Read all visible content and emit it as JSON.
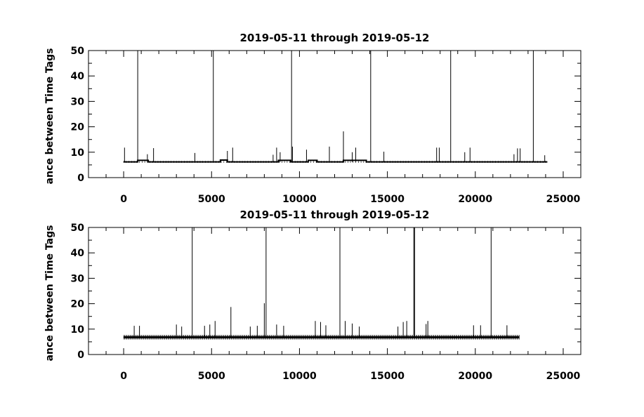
{
  "chart_data": [
    {
      "type": "line",
      "title": "2019-05-11 through 2019-05-12",
      "ylabel": "ance between Time Tags",
      "xlabel": "",
      "xlim": [
        -2000,
        26000
      ],
      "ylim": [
        0,
        50
      ],
      "xticks": [
        0,
        5000,
        10000,
        15000,
        20000,
        25000
      ],
      "yticks": [
        0,
        10,
        20,
        30,
        40,
        50
      ],
      "grid": false,
      "x_end": 24100,
      "baseline": [
        [
          0,
          6.2
        ],
        [
          800,
          6.2
        ],
        [
          800,
          6.8
        ],
        [
          1400,
          6.8
        ],
        [
          1400,
          6.2
        ],
        [
          5500,
          6.2
        ],
        [
          5500,
          6.9
        ],
        [
          5900,
          6.9
        ],
        [
          5900,
          6.2
        ],
        [
          8800,
          6.2
        ],
        [
          8800,
          6.8
        ],
        [
          9500,
          6.8
        ],
        [
          9500,
          6.2
        ],
        [
          10500,
          6.2
        ],
        [
          10500,
          6.8
        ],
        [
          11000,
          6.8
        ],
        [
          11000,
          6.2
        ],
        [
          12500,
          6.2
        ],
        [
          12500,
          6.8
        ],
        [
          13800,
          6.8
        ],
        [
          13800,
          6.2
        ],
        [
          24100,
          6.2
        ]
      ],
      "spikes": [
        [
          800,
          50
        ],
        [
          5100,
          50
        ],
        [
          9550,
          50
        ],
        [
          14050,
          50
        ],
        [
          18600,
          50
        ],
        [
          23300,
          50
        ],
        [
          50,
          11.8
        ],
        [
          1350,
          9.2
        ],
        [
          1700,
          11.6
        ],
        [
          4050,
          9.7
        ],
        [
          5900,
          10.5
        ],
        [
          6200,
          11.8
        ],
        [
          8500,
          9
        ],
        [
          8700,
          11.8
        ],
        [
          8900,
          10
        ],
        [
          9600,
          12.2
        ],
        [
          10400,
          11
        ],
        [
          11700,
          12.2
        ],
        [
          12500,
          18.2
        ],
        [
          13000,
          10
        ],
        [
          13200,
          11.8
        ],
        [
          14800,
          10.2
        ],
        [
          17800,
          11.8
        ],
        [
          17950,
          11.8
        ],
        [
          19400,
          10
        ],
        [
          19700,
          11.8
        ],
        [
          22200,
          9.2
        ],
        [
          22400,
          11.5
        ],
        [
          22550,
          11.5
        ],
        [
          23950,
          8.8
        ]
      ]
    },
    {
      "type": "line",
      "title": "2019-05-11 through 2019-05-12",
      "ylabel": "ance between Time Tags",
      "xlabel": "",
      "xlim": [
        -2000,
        26000
      ],
      "ylim": [
        0,
        50
      ],
      "xticks": [
        0,
        5000,
        10000,
        15000,
        20000,
        25000
      ],
      "yticks": [
        0,
        10,
        20,
        30,
        40,
        50
      ],
      "grid": false,
      "x_end": 22500,
      "baseline": [
        [
          0,
          6.8
        ],
        [
          22500,
          6.8
        ]
      ],
      "spikes": [
        [
          3900,
          50
        ],
        [
          8100,
          50
        ],
        [
          12300,
          50
        ],
        [
          16500,
          50
        ],
        [
          16550,
          50
        ],
        [
          20900,
          50
        ],
        [
          600,
          11.3
        ],
        [
          900,
          11.3
        ],
        [
          3000,
          11.8
        ],
        [
          3300,
          11
        ],
        [
          4600,
          11.3
        ],
        [
          4900,
          11.8
        ],
        [
          5200,
          13.2
        ],
        [
          6100,
          18.7
        ],
        [
          7200,
          11
        ],
        [
          7600,
          11.3
        ],
        [
          8000,
          20.2
        ],
        [
          8700,
          11.8
        ],
        [
          9100,
          11.3
        ],
        [
          10900,
          13.2
        ],
        [
          11200,
          12.8
        ],
        [
          11500,
          11.5
        ],
        [
          12600,
          13.2
        ],
        [
          13000,
          12.2
        ],
        [
          13400,
          11
        ],
        [
          15600,
          11
        ],
        [
          15900,
          12.8
        ],
        [
          16100,
          13.2
        ],
        [
          17200,
          12
        ],
        [
          17300,
          13.2
        ],
        [
          19900,
          11.5
        ],
        [
          20300,
          11.5
        ],
        [
          21800,
          11.5
        ]
      ]
    }
  ]
}
